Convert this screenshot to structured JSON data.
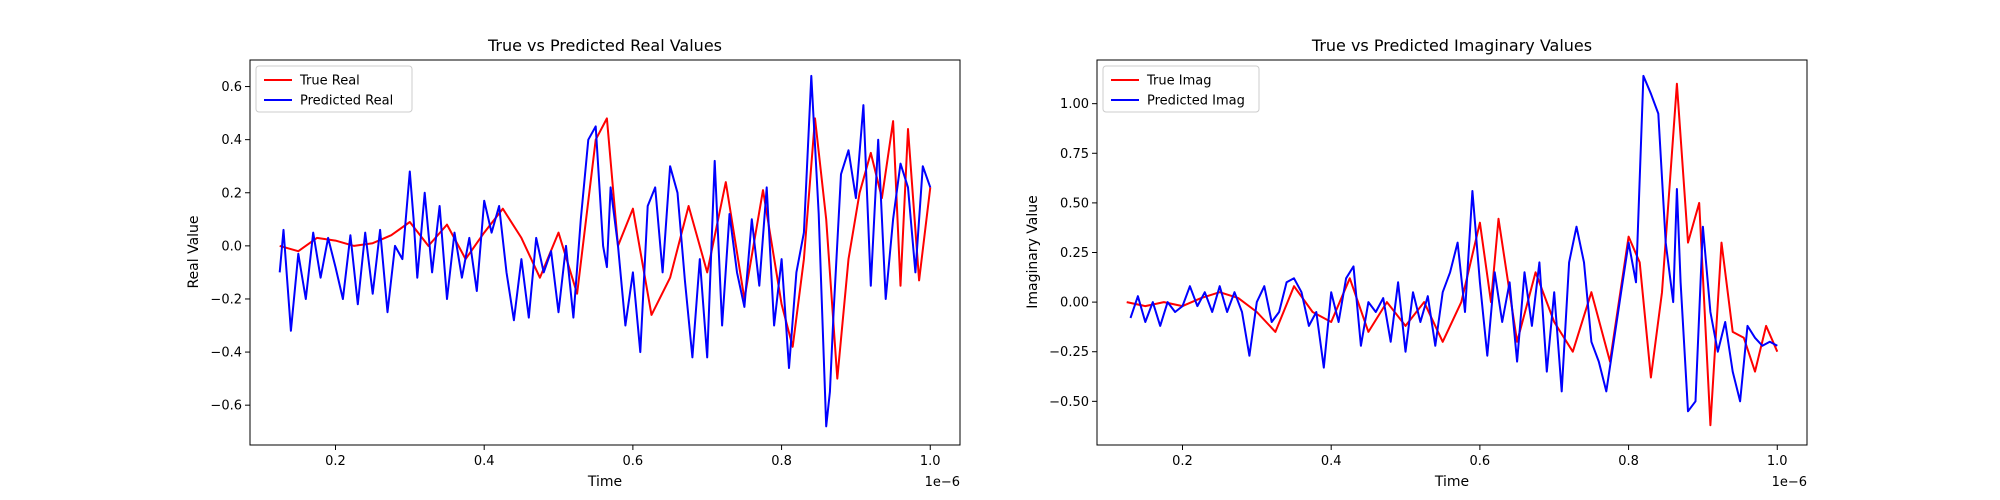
{
  "chart_data": [
    {
      "type": "line",
      "title": "True vs Predicted Real Values",
      "xlabel": "Time",
      "ylabel": "Real Value",
      "x_offset_label": "1e−6",
      "xlim": [
        0.085,
        1.04
      ],
      "ylim": [
        -0.75,
        0.7
      ],
      "xticks": [
        0.2,
        0.4,
        0.6,
        0.8,
        1.0
      ],
      "xtick_labels": [
        "0.2",
        "0.4",
        "0.6",
        "0.8",
        "1.0"
      ],
      "yticks": [
        -0.6,
        -0.4,
        -0.2,
        0.0,
        0.2,
        0.4,
        0.6
      ],
      "ytick_labels": [
        "−0.6",
        "−0.4",
        "−0.2",
        "0.0",
        "0.2",
        "0.4",
        "0.6"
      ],
      "legend_position": "top-left",
      "grid": false,
      "series": [
        {
          "name": "True Real",
          "color": "#ff0000",
          "x": [
            0.125,
            0.15,
            0.175,
            0.2,
            0.225,
            0.25,
            0.275,
            0.3,
            0.325,
            0.35,
            0.375,
            0.4,
            0.425,
            0.45,
            0.475,
            0.5,
            0.525,
            0.55,
            0.565,
            0.58,
            0.6,
            0.625,
            0.65,
            0.675,
            0.7,
            0.725,
            0.75,
            0.775,
            0.8,
            0.815,
            0.83,
            0.845,
            0.86,
            0.875,
            0.89,
            0.905,
            0.92,
            0.935,
            0.95,
            0.96,
            0.97,
            0.985,
            1.0
          ],
          "y": [
            0.0,
            -0.02,
            0.03,
            0.02,
            0.0,
            0.01,
            0.04,
            0.09,
            0.0,
            0.08,
            -0.05,
            0.05,
            0.14,
            0.03,
            -0.12,
            0.05,
            -0.18,
            0.4,
            0.48,
            0.0,
            0.14,
            -0.26,
            -0.12,
            0.15,
            -0.1,
            0.24,
            -0.2,
            0.21,
            -0.22,
            -0.38,
            -0.05,
            0.48,
            0.1,
            -0.5,
            -0.05,
            0.2,
            0.35,
            0.18,
            0.47,
            -0.15,
            0.44,
            -0.13,
            0.22
          ]
        },
        {
          "name": "Predicted Real",
          "color": "#0000ff",
          "x": [
            0.125,
            0.13,
            0.14,
            0.15,
            0.16,
            0.17,
            0.18,
            0.19,
            0.2,
            0.21,
            0.22,
            0.23,
            0.24,
            0.25,
            0.26,
            0.27,
            0.28,
            0.29,
            0.3,
            0.305,
            0.31,
            0.32,
            0.33,
            0.34,
            0.35,
            0.36,
            0.37,
            0.38,
            0.39,
            0.4,
            0.41,
            0.42,
            0.43,
            0.44,
            0.45,
            0.46,
            0.47,
            0.48,
            0.49,
            0.5,
            0.51,
            0.52,
            0.53,
            0.54,
            0.55,
            0.56,
            0.565,
            0.57,
            0.58,
            0.59,
            0.6,
            0.61,
            0.62,
            0.63,
            0.64,
            0.65,
            0.66,
            0.67,
            0.68,
            0.69,
            0.7,
            0.71,
            0.72,
            0.73,
            0.74,
            0.75,
            0.76,
            0.77,
            0.78,
            0.79,
            0.8,
            0.81,
            0.82,
            0.83,
            0.84,
            0.85,
            0.86,
            0.865,
            0.87,
            0.88,
            0.89,
            0.9,
            0.91,
            0.92,
            0.93,
            0.94,
            0.95,
            0.96,
            0.97,
            0.98,
            0.99,
            1.0
          ],
          "y": [
            -0.1,
            0.06,
            -0.32,
            -0.03,
            -0.2,
            0.05,
            -0.12,
            0.03,
            -0.08,
            -0.2,
            0.04,
            -0.22,
            0.05,
            -0.18,
            0.06,
            -0.25,
            0.0,
            -0.05,
            0.28,
            0.1,
            -0.12,
            0.2,
            -0.1,
            0.15,
            -0.2,
            0.05,
            -0.12,
            0.03,
            -0.17,
            0.17,
            0.05,
            0.15,
            -0.1,
            -0.28,
            -0.05,
            -0.27,
            0.03,
            -0.1,
            -0.02,
            -0.25,
            0.0,
            -0.27,
            0.1,
            0.4,
            0.45,
            0.0,
            -0.08,
            0.22,
            0.0,
            -0.3,
            -0.1,
            -0.4,
            0.15,
            0.22,
            -0.1,
            0.3,
            0.2,
            -0.13,
            -0.42,
            -0.05,
            -0.42,
            0.32,
            -0.3,
            0.12,
            -0.1,
            -0.23,
            0.1,
            -0.15,
            0.22,
            -0.3,
            -0.05,
            -0.46,
            -0.1,
            0.05,
            0.64,
            0.12,
            -0.68,
            -0.55,
            -0.25,
            0.27,
            0.36,
            0.18,
            0.53,
            -0.15,
            0.4,
            -0.2,
            0.1,
            0.31,
            0.22,
            -0.1,
            0.3,
            0.22
          ]
        }
      ]
    },
    {
      "type": "line",
      "title": "True vs Predicted Imaginary Values",
      "xlabel": "Time",
      "ylabel": "Imaginary Value",
      "x_offset_label": "1e−6",
      "xlim": [
        0.085,
        1.04
      ],
      "ylim": [
        -0.72,
        1.22
      ],
      "xticks": [
        0.2,
        0.4,
        0.6,
        0.8,
        1.0
      ],
      "xtick_labels": [
        "0.2",
        "0.4",
        "0.6",
        "0.8",
        "1.0"
      ],
      "yticks": [
        -0.5,
        -0.25,
        0.0,
        0.25,
        0.5,
        0.75,
        1.0
      ],
      "ytick_labels": [
        "−0.50",
        "−0.25",
        "0.00",
        "0.25",
        "0.50",
        "0.75",
        "1.00"
      ],
      "legend_position": "top-left",
      "grid": false,
      "series": [
        {
          "name": "True Imag",
          "color": "#ff0000",
          "x": [
            0.125,
            0.15,
            0.175,
            0.2,
            0.225,
            0.25,
            0.275,
            0.3,
            0.325,
            0.35,
            0.375,
            0.4,
            0.425,
            0.45,
            0.475,
            0.5,
            0.525,
            0.55,
            0.575,
            0.6,
            0.615,
            0.625,
            0.65,
            0.675,
            0.7,
            0.725,
            0.75,
            0.775,
            0.8,
            0.815,
            0.83,
            0.845,
            0.865,
            0.88,
            0.895,
            0.91,
            0.925,
            0.94,
            0.955,
            0.97,
            0.985,
            1.0
          ],
          "y": [
            0.0,
            -0.02,
            0.0,
            -0.02,
            0.02,
            0.05,
            0.02,
            -0.05,
            -0.15,
            0.08,
            -0.05,
            -0.1,
            0.12,
            -0.15,
            0.0,
            -0.12,
            0.0,
            -0.2,
            0.0,
            0.4,
            0.0,
            0.42,
            -0.2,
            0.15,
            -0.1,
            -0.25,
            0.05,
            -0.3,
            0.33,
            0.2,
            -0.38,
            0.05,
            1.1,
            0.3,
            0.5,
            -0.62,
            0.3,
            -0.15,
            -0.18,
            -0.35,
            -0.12,
            -0.25
          ]
        },
        {
          "name": "Predicted Imag",
          "color": "#0000ff",
          "x": [
            0.13,
            0.14,
            0.15,
            0.16,
            0.17,
            0.18,
            0.19,
            0.2,
            0.21,
            0.22,
            0.23,
            0.24,
            0.25,
            0.26,
            0.27,
            0.28,
            0.29,
            0.3,
            0.31,
            0.32,
            0.33,
            0.34,
            0.35,
            0.36,
            0.37,
            0.38,
            0.39,
            0.4,
            0.41,
            0.42,
            0.43,
            0.44,
            0.45,
            0.46,
            0.47,
            0.48,
            0.49,
            0.5,
            0.51,
            0.52,
            0.53,
            0.54,
            0.55,
            0.56,
            0.57,
            0.58,
            0.59,
            0.6,
            0.61,
            0.62,
            0.63,
            0.64,
            0.65,
            0.66,
            0.67,
            0.68,
            0.69,
            0.7,
            0.71,
            0.72,
            0.73,
            0.74,
            0.75,
            0.76,
            0.77,
            0.78,
            0.79,
            0.8,
            0.81,
            0.82,
            0.83,
            0.84,
            0.85,
            0.86,
            0.865,
            0.87,
            0.88,
            0.89,
            0.9,
            0.91,
            0.92,
            0.93,
            0.94,
            0.95,
            0.96,
            0.97,
            0.98,
            0.99,
            1.0
          ],
          "y": [
            -0.08,
            0.03,
            -0.1,
            0.0,
            -0.12,
            0.0,
            -0.05,
            -0.02,
            0.08,
            -0.02,
            0.05,
            -0.05,
            0.08,
            -0.05,
            0.05,
            -0.05,
            -0.27,
            0.0,
            0.08,
            -0.1,
            -0.05,
            0.1,
            0.12,
            0.05,
            -0.12,
            -0.05,
            -0.33,
            0.05,
            -0.1,
            0.12,
            0.18,
            -0.22,
            0.0,
            -0.05,
            0.02,
            -0.2,
            0.1,
            -0.25,
            0.05,
            -0.1,
            0.03,
            -0.22,
            0.05,
            0.15,
            0.3,
            -0.05,
            0.56,
            0.1,
            -0.27,
            0.15,
            -0.1,
            0.1,
            -0.3,
            0.15,
            -0.12,
            0.2,
            -0.35,
            0.05,
            -0.45,
            0.2,
            0.38,
            0.2,
            -0.2,
            -0.3,
            -0.45,
            -0.2,
            0.05,
            0.3,
            0.1,
            1.14,
            1.05,
            0.95,
            0.3,
            0.0,
            0.57,
            0.1,
            -0.55,
            -0.5,
            0.38,
            -0.05,
            -0.25,
            -0.1,
            -0.35,
            -0.5,
            -0.12,
            -0.18,
            -0.22,
            -0.2,
            -0.22
          ]
        }
      ]
    }
  ]
}
